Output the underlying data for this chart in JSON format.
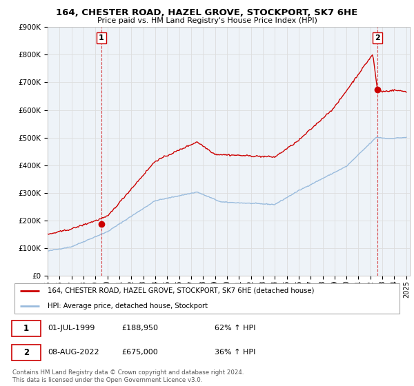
{
  "title": "164, CHESTER ROAD, HAZEL GROVE, STOCKPORT, SK7 6HE",
  "subtitle": "Price paid vs. HM Land Registry's House Price Index (HPI)",
  "ylim": [
    0,
    900000
  ],
  "yticks": [
    0,
    100000,
    200000,
    300000,
    400000,
    500000,
    600000,
    700000,
    800000,
    900000
  ],
  "ytick_labels": [
    "£0",
    "£100K",
    "£200K",
    "£300K",
    "£400K",
    "£500K",
    "£600K",
    "£700K",
    "£800K",
    "£900K"
  ],
  "xtick_years": [
    1995,
    1996,
    1997,
    1998,
    1999,
    2000,
    2001,
    2002,
    2003,
    2004,
    2005,
    2006,
    2007,
    2008,
    2009,
    2010,
    2011,
    2012,
    2013,
    2014,
    2015,
    2016,
    2017,
    2018,
    2019,
    2020,
    2021,
    2022,
    2023,
    2024,
    2025
  ],
  "red_line_color": "#cc0000",
  "blue_line_color": "#99bbdd",
  "point1_x": 1999.5,
  "point1_y": 188950,
  "point2_x": 2022.58,
  "point2_y": 675000,
  "legend_line1": "164, CHESTER ROAD, HAZEL GROVE, STOCKPORT, SK7 6HE (detached house)",
  "legend_line2": "HPI: Average price, detached house, Stockport",
  "table_row1": [
    "1",
    "01-JUL-1999",
    "£188,950",
    "62% ↑ HPI"
  ],
  "table_row2": [
    "2",
    "08-AUG-2022",
    "£675,000",
    "36% ↑ HPI"
  ],
  "footnote": "Contains HM Land Registry data © Crown copyright and database right 2024.\nThis data is licensed under the Open Government Licence v3.0.",
  "bg_color": "#ffffff",
  "grid_color": "#dddddd",
  "plot_bg": "#eef3f8"
}
